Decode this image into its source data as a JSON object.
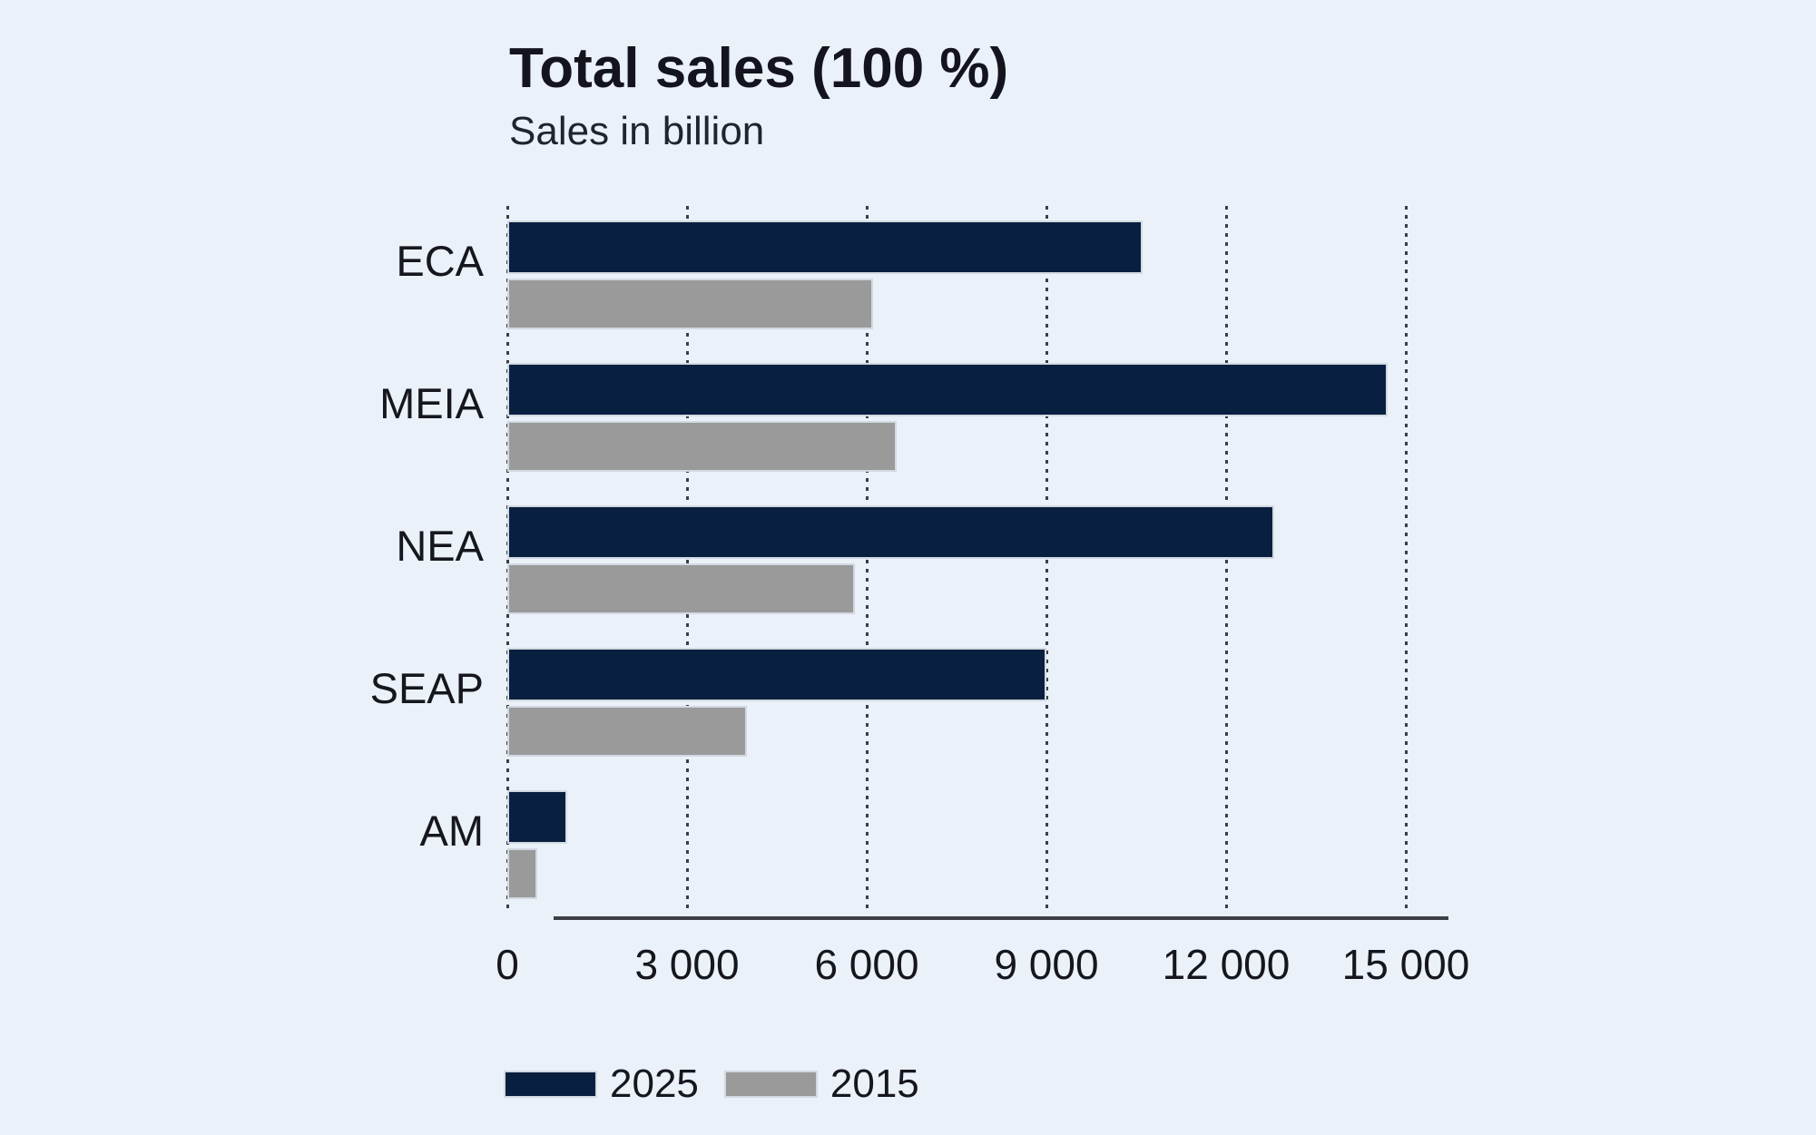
{
  "colors": {
    "background": "#eaf1f9",
    "series_2025": "#081f40",
    "series_2015": "#9a9a9a",
    "axis_line": "#3c4046",
    "gridline": "#3a3f46",
    "bar_border": "#d2d9e2",
    "text": "#16161e"
  },
  "chart_data": {
    "type": "bar",
    "orientation": "horizontal",
    "title": "Total sales (100 %)",
    "subtitle": "Sales in billion",
    "categories": [
      "ECA",
      "MEIA",
      "NEA",
      "SEAP",
      "AM"
    ],
    "series": [
      {
        "name": "2025",
        "color": "#081f40",
        "values": [
          10600,
          14700,
          12800,
          9000,
          1000
        ]
      },
      {
        "name": "2015",
        "color": "#9a9a9a",
        "values": [
          6100,
          6500,
          5800,
          4000,
          500
        ]
      }
    ],
    "xlim": [
      0,
      15000
    ],
    "x_ticks": [
      {
        "value": 0,
        "label": "0"
      },
      {
        "value": 3000,
        "label": "3 000"
      },
      {
        "value": 6000,
        "label": "6 000"
      },
      {
        "value": 9000,
        "label": "9 000"
      },
      {
        "value": 12000,
        "label": "12 000"
      },
      {
        "value": 15000,
        "label": "15 000"
      }
    ],
    "grid": "vertical-dotted",
    "legend_position": "bottom-left",
    "legend": [
      "2025",
      "2015"
    ]
  }
}
